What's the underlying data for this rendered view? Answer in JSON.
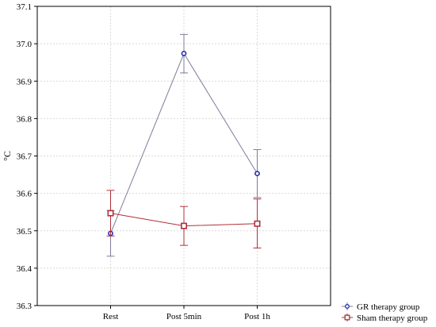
{
  "chart_data": {
    "type": "line",
    "title": "",
    "xlabel": "",
    "ylabel": "°C",
    "categories": [
      "Rest",
      "Post 5min",
      "Post 1h"
    ],
    "ylim": [
      36.3,
      37.1
    ],
    "yticks": [
      36.3,
      36.4,
      36.5,
      36.6,
      36.7,
      36.8,
      36.9,
      37.0,
      37.1
    ],
    "grid": true,
    "legend_position": "bottom-right",
    "series": [
      {
        "name": "GR therapy group",
        "color": "#2b2bb0",
        "line_color": "#7d7d9a",
        "marker": "circle",
        "values": [
          36.493,
          36.974,
          36.653
        ],
        "error_low": [
          36.432,
          36.922,
          36.589
        ],
        "error_high": [
          36.554,
          37.025,
          36.717
        ]
      },
      {
        "name": "Sham therapy group",
        "color": "#b0303a",
        "line_color": "#b0303a",
        "marker": "square",
        "values": [
          36.547,
          36.513,
          36.519
        ],
        "error_low": [
          36.486,
          36.461,
          36.454
        ],
        "error_high": [
          36.608,
          36.565,
          36.585
        ]
      }
    ]
  }
}
